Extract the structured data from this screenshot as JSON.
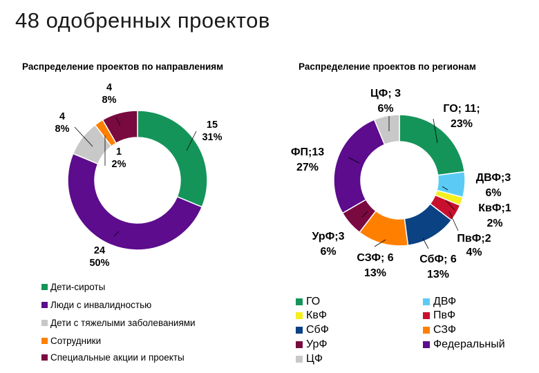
{
  "title": "48 одобренных проектов",
  "chart_data": [
    {
      "type": "pie",
      "variant": "donut",
      "title": "Распределение  проектов по направлениям",
      "categories": [
        "Дети-сироты",
        "Люди с инвалидностью",
        "Дети с тяжелыми заболеваниями",
        "Сотрудники",
        "Специальные акции и проекты"
      ],
      "values": [
        15,
        24,
        4,
        1,
        4
      ],
      "percents": [
        "31%",
        "50%",
        "8%",
        "2%",
        "8%"
      ],
      "colors": [
        "#15945a",
        "#5c0c8c",
        "#c8c8c8",
        "#ff8000",
        "#790a40"
      ],
      "legend_position": "bottom"
    },
    {
      "type": "pie",
      "variant": "donut",
      "title": "Распределение проектов по регионам",
      "categories": [
        "ГО",
        "ДВФ",
        "КвФ",
        "ПвФ",
        "СбФ",
        "СЗФ",
        "УрФ",
        "Федеральный",
        "ЦФ"
      ],
      "slice_order": [
        "ГО",
        "ДВФ",
        "КвФ",
        "ПвФ",
        "СбФ",
        "СЗФ",
        "УрФ",
        "ФП",
        "ЦФ"
      ],
      "slice_labels": [
        "ГО",
        "ДВФ",
        "КвФ",
        "ПвФ",
        "СбФ",
        "СЗФ",
        "УрФ",
        "ФП",
        "ЦФ"
      ],
      "values": [
        11,
        3,
        1,
        2,
        6,
        6,
        3,
        13,
        3
      ],
      "percents": [
        "23%",
        "6%",
        "2%",
        "4%",
        "13%",
        "13%",
        "6%",
        "27%",
        "6%"
      ],
      "colors": [
        "#15945a",
        "#5bcbf5",
        "#f5ef1e",
        "#c8102e",
        "#0a4283",
        "#ff8000",
        "#790a40",
        "#5c0c8c",
        "#c8c8c8"
      ],
      "legend_position": "bottom"
    }
  ]
}
